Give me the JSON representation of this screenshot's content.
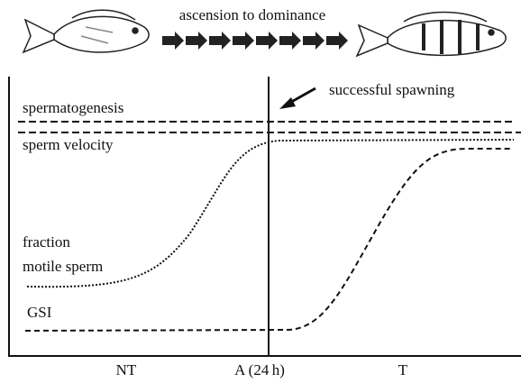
{
  "header": {
    "title": "ascension to dominance"
  },
  "annotation": "successful spawning",
  "curves": {
    "spermatogenesis": "spermatogenesis",
    "sperm_velocity": "sperm velocity",
    "fraction_motile": [
      "fraction",
      "motile sperm"
    ],
    "gsi": "GSI"
  },
  "x_labels": [
    "NT",
    "A (24 h)",
    "T"
  ]
}
